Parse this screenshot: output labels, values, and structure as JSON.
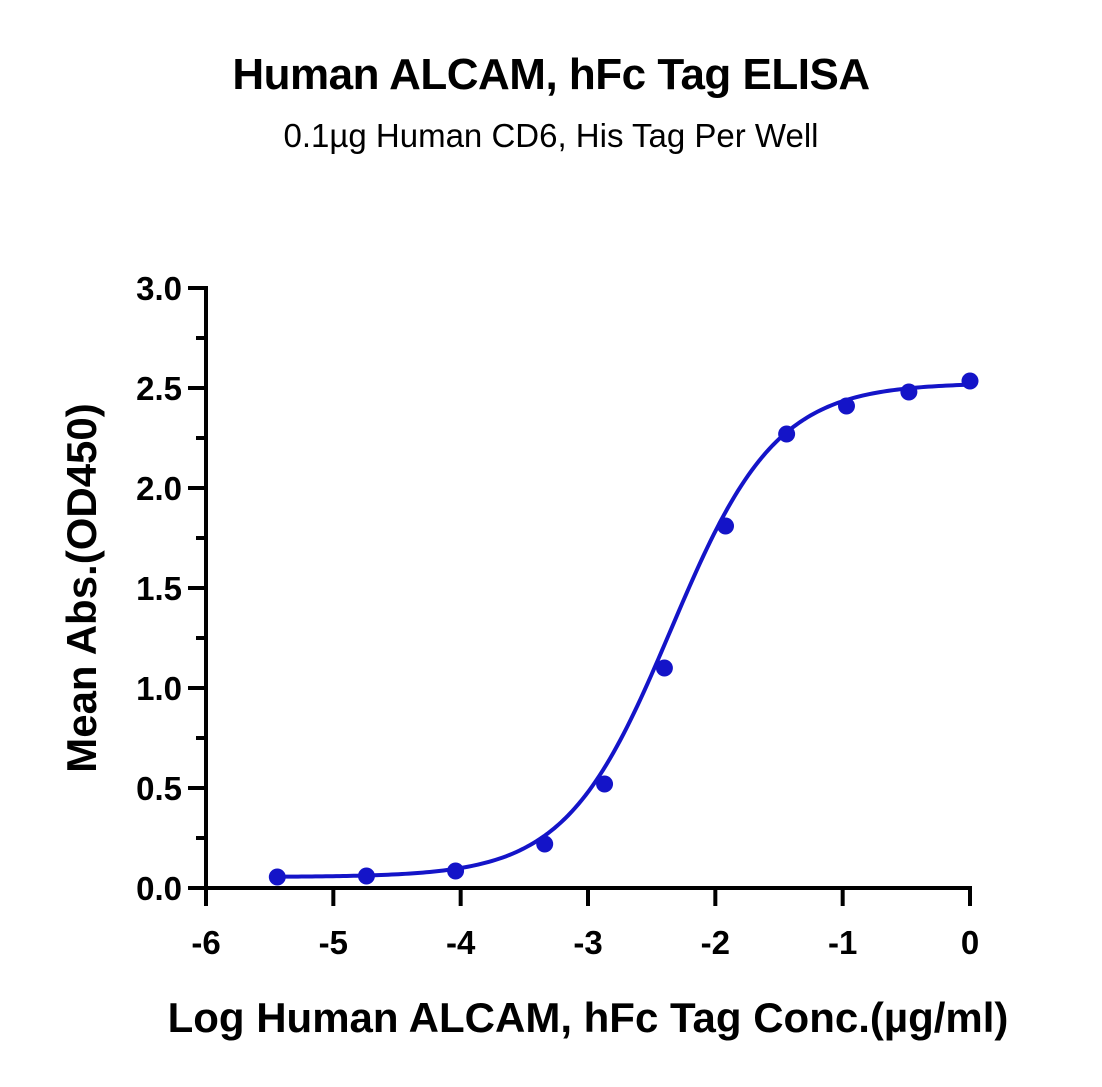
{
  "chart_data": {
    "type": "scatter",
    "title": "Human ALCAM, hFc Tag ELISA",
    "subtitle": "0.1µg Human CD6, His Tag Per Well",
    "xlabel": "Log Human ALCAM, hFc Tag Conc.(µg/ml)",
    "ylabel": "Mean Abs.(OD450)",
    "xlim": [
      -6,
      0
    ],
    "ylim": [
      0,
      3.0
    ],
    "x_ticks": [
      "-6",
      "-5",
      "-4",
      "-3",
      "-2",
      "-1",
      "0"
    ],
    "y_ticks": [
      "0.0",
      "0.5",
      "1.0",
      "1.5",
      "2.0",
      "2.5",
      "3.0"
    ],
    "grid": false,
    "colors": {
      "series": "#1414c8",
      "axis": "#000000"
    },
    "series": [
      {
        "x": [
          -5.44,
          -4.74,
          -4.04,
          -3.34,
          -2.87,
          -2.4,
          -1.92,
          -1.44,
          -0.97,
          -0.48,
          0.0
        ],
        "y": [
          0.055,
          0.06,
          0.085,
          0.22,
          0.52,
          1.1,
          1.81,
          2.27,
          2.41,
          2.48,
          2.535
        ]
      }
    ],
    "fit": {
      "type": "4PL",
      "bottom": 0.055,
      "top": 2.525,
      "ec50_log": -2.35,
      "hill": 1.05
    }
  }
}
